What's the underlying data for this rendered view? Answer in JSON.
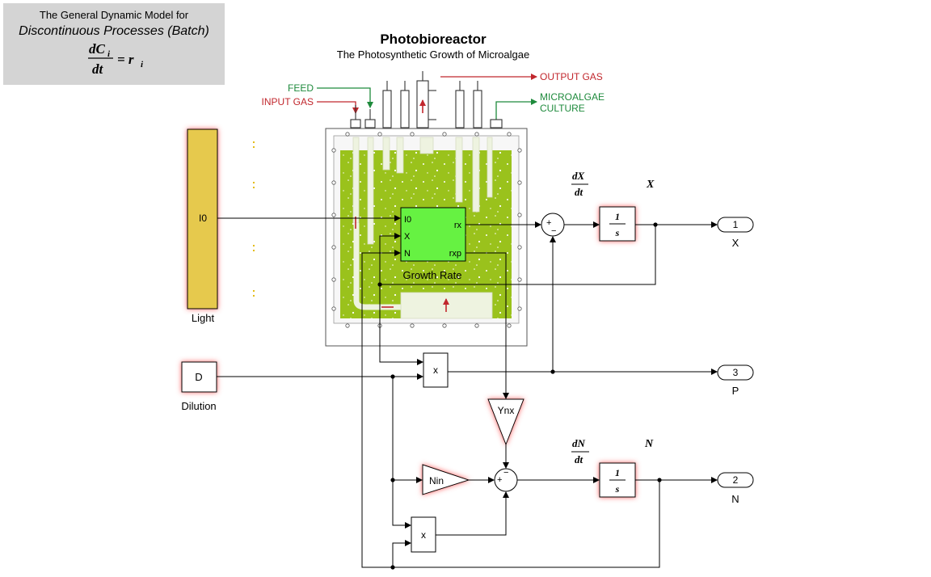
{
  "model_box": {
    "line1": "The General Dynamic Model for",
    "line2": "Discontinuous Processes (Batch)",
    "eq_num": "dC",
    "eq_sub": "i",
    "eq_den": "dt",
    "eq_rhs": "= r",
    "eq_rhs_sub": "i"
  },
  "header": {
    "title": "Photobioreactor",
    "subtitle": "The Photosynthetic Growth of Microalgae"
  },
  "reactor_labels": {
    "feed": "FEED",
    "input_gas": "INPUT GAS",
    "output_gas": "OUTPUT GAS",
    "culture_line1": "MICROALGAE",
    "culture_line2": "CULTURE"
  },
  "blocks": {
    "light_value": "I0",
    "light_label": "Light",
    "dilution_value": "D",
    "dilution_label": "Dilution",
    "growth_in1": "I0",
    "growth_in2": "X",
    "growth_in3": "N",
    "growth_out1": "rx",
    "growth_out2": "rxp",
    "growth_label": "Growth Rate",
    "integrator_num": "1",
    "integrator_den": "s",
    "product": "x",
    "ynx": "Ynx",
    "nin": "Nin",
    "sum_plus": "+",
    "sum_minus": "−"
  },
  "equations": {
    "dx_num": "dX",
    "dx_den": "dt",
    "x_state": "X",
    "dn_num": "dN",
    "dn_den": "dt",
    "n_state": "N"
  },
  "outports": [
    {
      "num": "1",
      "label": "X"
    },
    {
      "num": "3",
      "label": "P"
    },
    {
      "num": "2",
      "label": "N"
    }
  ],
  "colors": {
    "panel_grey": "#d4d4d4",
    "light_yellow": "#e6c94d",
    "culture_green": "#9ac21c",
    "growth_block": "#66f242",
    "shadow_red": "#ff6b6b",
    "arrow_red": "#c1272d",
    "arrow_green": "#1e8a3c"
  }
}
